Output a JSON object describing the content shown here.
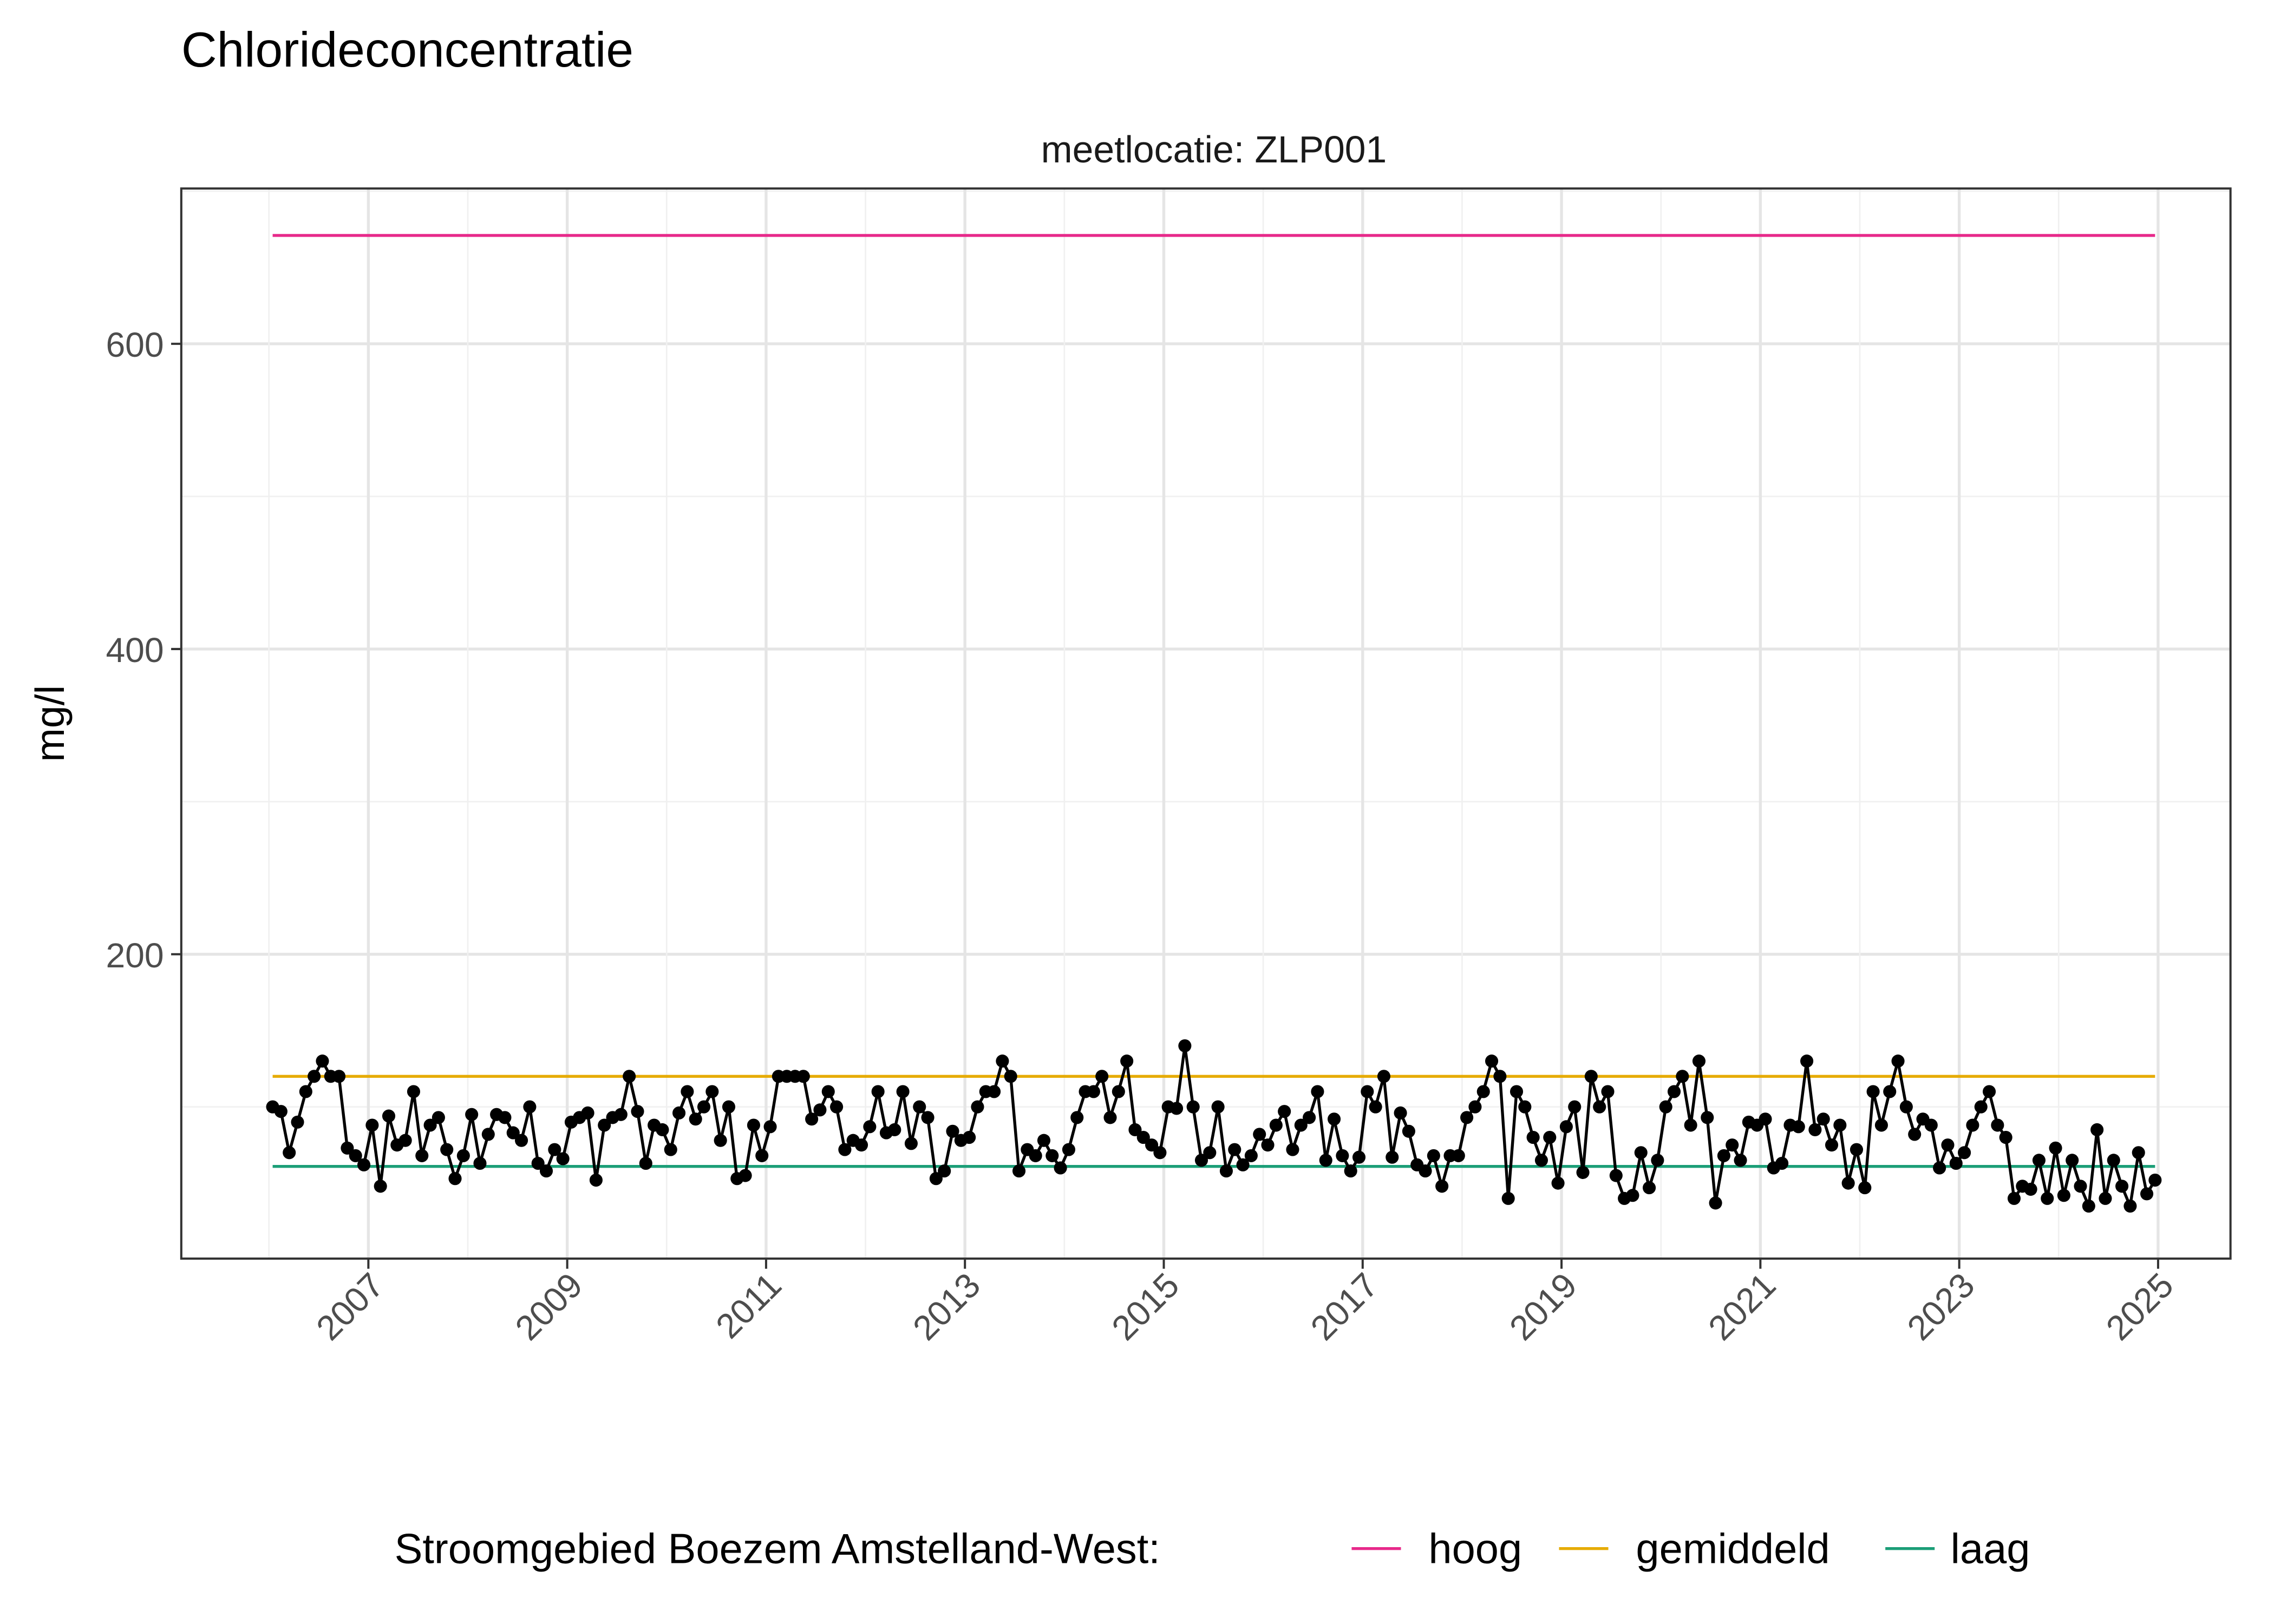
{
  "chart_data": {
    "type": "line",
    "title": "Chlorideconcentratie",
    "facet_label": "meetlocatie: ZLP001",
    "ylabel": "mg/l",
    "xlabel": "",
    "ylim": [
      0,
      700
    ],
    "xlim": [
      2006,
      2025
    ],
    "yticks": [
      200,
      400,
      600
    ],
    "ytick_labels": [
      "200",
      "400",
      "600"
    ],
    "xticks": [
      2007,
      2009,
      2011,
      2013,
      2015,
      2017,
      2019,
      2021,
      2023,
      2025
    ],
    "xtick_labels": [
      "2007",
      "2009",
      "2011",
      "2013",
      "2015",
      "2017",
      "2019",
      "2021",
      "2023",
      "2025"
    ],
    "grid": true,
    "legend": {
      "position": "bottom",
      "title": "Stroomgebied Boezem Amstelland-West:",
      "entries": [
        {
          "label": "hoog",
          "value": 671,
          "color": "#E7298A"
        },
        {
          "label": "gemiddeld",
          "value": 120,
          "color": "#E6AB02"
        },
        {
          "label": "laag",
          "value": 61,
          "color": "#1B9E77"
        }
      ]
    },
    "series_color": "#000000",
    "monthly_values_by_year": [
      {
        "year": 2006,
        "values": [
          100,
          97,
          70,
          90,
          110,
          120,
          130,
          120,
          120,
          73,
          68,
          62
        ]
      },
      {
        "year": 2007,
        "values": [
          88,
          48,
          94,
          75,
          78,
          110,
          68,
          88,
          93,
          72,
          53,
          68
        ]
      },
      {
        "year": 2008,
        "values": [
          95,
          63,
          82,
          95,
          93,
          83,
          78,
          100,
          63,
          58,
          72,
          66
        ]
      },
      {
        "year": 2009,
        "values": [
          90,
          93,
          96,
          52,
          88,
          93,
          95,
          120,
          97,
          63,
          88,
          85
        ]
      },
      {
        "year": 2010,
        "values": [
          72,
          96,
          110,
          92,
          100,
          110,
          78,
          100,
          53,
          55,
          88,
          68
        ]
      },
      {
        "year": 2011,
        "values": [
          87,
          120,
          120,
          120,
          120,
          92,
          98,
          110,
          100,
          72,
          78,
          75
        ]
      },
      {
        "year": 2012,
        "values": [
          87,
          110,
          83,
          85,
          110,
          76,
          100,
          93,
          53,
          58,
          84,
          78
        ]
      },
      {
        "year": 2013,
        "values": [
          80,
          100,
          110,
          110,
          130,
          120,
          58,
          72,
          68,
          78,
          68,
          60
        ]
      },
      {
        "year": 2014,
        "values": [
          72,
          93,
          110,
          110,
          120,
          93,
          110,
          130,
          85,
          80,
          75,
          70
        ]
      },
      {
        "year": 2015,
        "values": [
          100,
          99,
          140,
          100,
          65,
          70,
          100,
          58,
          72,
          62,
          68,
          82
        ]
      },
      {
        "year": 2016,
        "values": [
          75,
          88,
          97,
          72,
          88,
          93,
          110,
          65,
          92,
          68,
          58,
          67
        ]
      },
      {
        "year": 2017,
        "values": [
          110,
          100,
          120,
          67,
          96,
          84,
          62,
          58,
          68,
          48,
          68,
          68
        ]
      },
      {
        "year": 2018,
        "values": [
          93,
          100,
          110,
          130,
          120,
          40,
          110,
          100,
          80,
          65,
          80,
          50
        ]
      },
      {
        "year": 2019,
        "values": [
          87,
          100,
          57,
          120,
          100,
          110,
          55,
          40,
          42,
          70,
          47,
          65
        ]
      },
      {
        "year": 2020,
        "values": [
          100,
          110,
          120,
          88,
          130,
          93,
          37,
          68,
          75,
          65,
          90,
          88
        ]
      },
      {
        "year": 2021,
        "values": [
          92,
          60,
          63,
          88,
          87,
          130,
          85,
          92,
          75,
          88,
          50,
          72
        ]
      },
      {
        "year": 2022,
        "values": [
          47,
          110,
          88,
          110,
          130,
          100,
          82,
          92,
          88,
          60,
          75,
          63
        ]
      },
      {
        "year": 2023,
        "values": [
          70,
          88,
          100,
          110,
          88,
          80,
          40,
          48,
          46,
          65,
          40,
          73
        ]
      },
      {
        "year": 2024,
        "values": [
          42,
          65,
          48,
          35,
          85,
          40,
          65,
          48,
          35,
          70,
          43,
          52
        ]
      }
    ]
  }
}
